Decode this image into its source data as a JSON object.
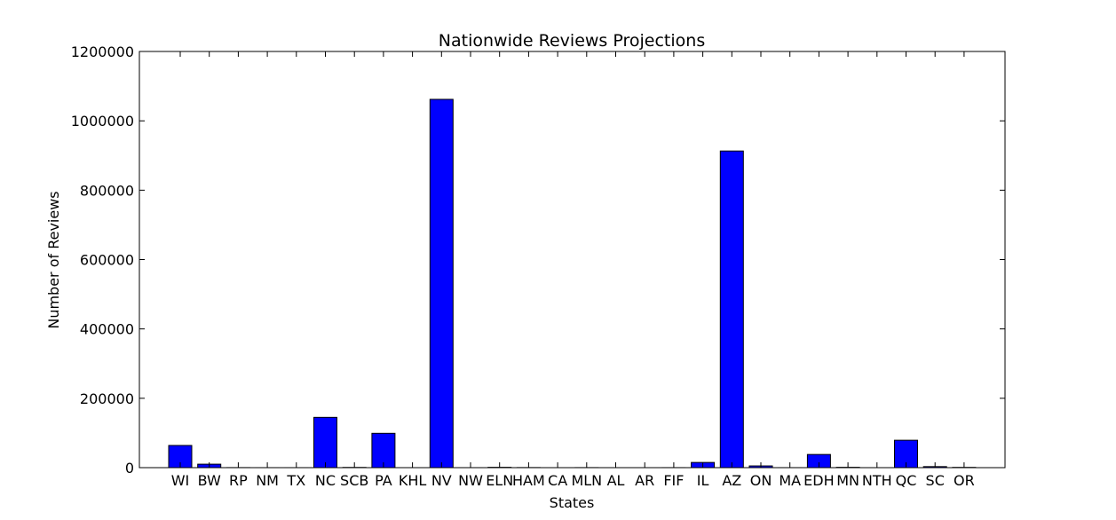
{
  "chart_data": {
    "type": "bar",
    "title": "Nationwide Reviews Projections",
    "xlabel": "States",
    "ylabel": "Number of Reviews",
    "ylim": [
      0,
      1200000
    ],
    "yticks": [
      "0",
      "200000",
      "400000",
      "600000",
      "800000",
      "1000000",
      "1200000"
    ],
    "grid": false,
    "bar_color": "#0000ff",
    "categories": [
      "WI",
      "BW",
      "RP",
      "NM",
      "TX",
      "NC",
      "SCB",
      "PA",
      "KHL",
      "NV",
      "NW",
      "ELN",
      "HAM",
      "CA",
      "MLN",
      "AL",
      "AR",
      "FIF",
      "IL",
      "AZ",
      "ON",
      "MA",
      "EDH",
      "MN",
      "NTH",
      "QC",
      "SC",
      "OR"
    ],
    "values": [
      64000,
      10000,
      200,
      20,
      20,
      145000,
      700,
      99000,
      10,
      1062000,
      30,
      1000,
      300,
      10,
      200,
      10,
      10,
      100,
      15000,
      913000,
      5000,
      40,
      38000,
      1000,
      10,
      79000,
      3000,
      800
    ]
  }
}
